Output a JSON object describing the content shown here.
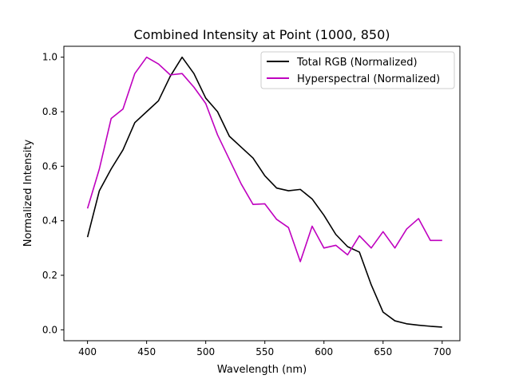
{
  "chart_data": {
    "type": "line",
    "title": "Combined Intensity at Point (1000, 850)",
    "xlabel": "Wavelength (nm)",
    "ylabel": "Normalized Intensity",
    "xlim": [
      380,
      715
    ],
    "ylim": [
      -0.04,
      1.04
    ],
    "xticks": [
      400,
      450,
      500,
      550,
      600,
      650,
      700
    ],
    "yticks": [
      0.0,
      0.2,
      0.4,
      0.6,
      0.8,
      1.0
    ],
    "grid": false,
    "legend_position": "upper right",
    "x": [
      400,
      410,
      420,
      430,
      440,
      450,
      460,
      470,
      480,
      490,
      500,
      510,
      520,
      530,
      540,
      550,
      560,
      570,
      580,
      590,
      600,
      610,
      620,
      630,
      640,
      650,
      660,
      670,
      680,
      690,
      700
    ],
    "series": [
      {
        "name": "Total RGB (Normalized)",
        "color": "#000000",
        "values": [
          0.34,
          0.51,
          0.59,
          0.66,
          0.76,
          0.8,
          0.84,
          0.93,
          1.0,
          0.94,
          0.85,
          0.8,
          0.71,
          0.67,
          0.63,
          0.565,
          0.52,
          0.51,
          0.515,
          0.48,
          0.42,
          0.35,
          0.305,
          0.285,
          0.165,
          0.065,
          0.033,
          0.022,
          0.017,
          0.013,
          0.01
        ]
      },
      {
        "name": "Hyperspectral (Normalized)",
        "color": "#bf00bf",
        "values": [
          0.445,
          0.59,
          0.775,
          0.81,
          0.94,
          1.0,
          0.975,
          0.935,
          0.94,
          0.89,
          0.83,
          0.715,
          0.625,
          0.535,
          0.46,
          0.462,
          0.405,
          0.375,
          0.25,
          0.38,
          0.3,
          0.31,
          0.275,
          0.345,
          0.3,
          0.36,
          0.3,
          0.37,
          0.408,
          0.328,
          0.328
        ]
      }
    ]
  }
}
